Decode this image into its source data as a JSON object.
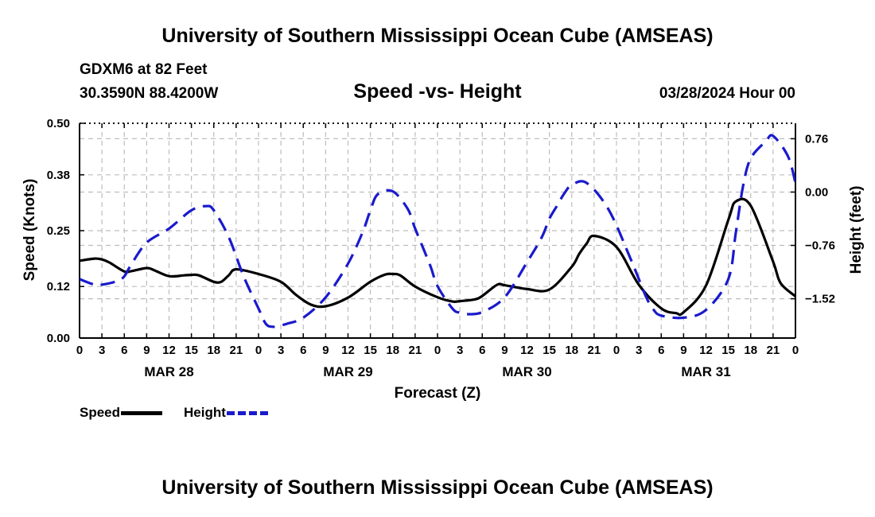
{
  "page": {
    "title_top": "University of Southern Mississippi Ocean Cube (AMSEAS)",
    "title_bottom": "University of Southern Mississippi Ocean Cube (AMSEAS)",
    "station": "GDXM6 at 82 Feet",
    "coords": "30.3590N  88.4200W",
    "subtitle": "Speed -vs- Height",
    "date": "03/28/2024 Hour 00"
  },
  "legend": {
    "speed_label": "Speed",
    "height_label": "Height"
  },
  "colors": {
    "speed": "#000000",
    "height": "#1a1acc",
    "grid": "#bdbdbd"
  },
  "chart_data": {
    "type": "line",
    "title": "Speed -vs- Height",
    "xlabel": "Forecast (Z)",
    "ylabel": "Speed (Knots)",
    "y2label": "Height (feet)",
    "x_range": [
      0,
      96
    ],
    "ylim": [
      0,
      0.5
    ],
    "y_ticks": [
      0.0,
      0.12,
      0.25,
      0.38,
      0.5
    ],
    "y_tick_labels": [
      "0.00",
      "0.12",
      "0.25",
      "0.38",
      "0.50"
    ],
    "y2lim": [
      -2.08,
      0.98
    ],
    "y2_ticks": [
      -1.52,
      -0.76,
      0.0,
      0.76
    ],
    "y2_tick_labels": [
      "−1.52",
      "−0.76",
      "0.00",
      "0.76"
    ],
    "x_ticks": [
      0,
      3,
      6,
      9,
      12,
      15,
      18,
      21,
      24,
      27,
      30,
      33,
      36,
      39,
      42,
      45,
      48,
      51,
      54,
      57,
      60,
      63,
      66,
      69,
      72,
      75,
      78,
      81,
      84,
      87,
      90,
      93,
      96
    ],
    "x_tick_labels": [
      "0",
      "3",
      "6",
      "9",
      "12",
      "15",
      "18",
      "21",
      "0",
      "3",
      "6",
      "9",
      "12",
      "15",
      "18",
      "21",
      "0",
      "3",
      "6",
      "9",
      "12",
      "15",
      "18",
      "21",
      "0",
      "3",
      "6",
      "9",
      "12",
      "15",
      "18",
      "21",
      "0"
    ],
    "day_labels": [
      {
        "label": "MAR 28",
        "hour": 12
      },
      {
        "label": "MAR 29",
        "hour": 36
      },
      {
        "label": "MAR 30",
        "hour": 60
      },
      {
        "label": "MAR 31",
        "hour": 84
      }
    ],
    "series": [
      {
        "name": "Speed",
        "axis": "left",
        "style": "solid",
        "x": [
          0,
          2,
          3,
          4,
          6,
          7,
          9,
          10,
          12,
          14,
          15,
          16,
          18,
          19,
          20,
          21,
          24,
          27,
          29,
          31,
          33,
          36,
          39,
          41,
          42,
          43,
          45,
          48,
          50,
          51,
          53,
          54,
          56,
          57,
          60,
          63,
          66,
          67,
          68,
          69,
          72,
          75,
          78,
          80,
          81,
          84,
          87,
          88,
          90,
          93,
          94,
          96
        ],
        "y": [
          0.18,
          0.185,
          0.183,
          0.176,
          0.155,
          0.156,
          0.163,
          0.158,
          0.144,
          0.146,
          0.147,
          0.146,
          0.131,
          0.131,
          0.146,
          0.16,
          0.149,
          0.131,
          0.101,
          0.078,
          0.074,
          0.094,
          0.131,
          0.148,
          0.149,
          0.146,
          0.12,
          0.095,
          0.085,
          0.086,
          0.09,
          0.098,
          0.124,
          0.123,
          0.114,
          0.113,
          0.166,
          0.196,
          0.22,
          0.238,
          0.212,
          0.124,
          0.069,
          0.058,
          0.06,
          0.122,
          0.275,
          0.318,
          0.308,
          0.178,
          0.128,
          0.097
        ]
      },
      {
        "name": "Height",
        "axis": "right",
        "style": "dashed",
        "x": [
          0,
          2,
          3,
          5,
          6,
          7,
          9,
          12,
          15,
          17,
          18,
          20,
          22,
          24,
          25,
          26,
          27,
          28,
          30,
          33,
          36,
          38,
          39,
          40,
          42,
          44,
          45,
          47,
          48,
          50,
          51,
          52,
          54,
          57,
          60,
          62,
          63,
          64,
          65,
          66,
          68,
          71,
          74,
          76,
          77,
          78,
          81,
          84,
          87,
          88,
          89,
          90,
          92,
          93,
          95,
          96
        ],
        "y": [
          -1.24,
          -1.32,
          -1.32,
          -1.27,
          -1.2,
          -1.02,
          -0.72,
          -0.52,
          -0.26,
          -0.2,
          -0.26,
          -0.64,
          -1.2,
          -1.66,
          -1.88,
          -1.92,
          -1.9,
          -1.87,
          -1.79,
          -1.5,
          -1.02,
          -0.56,
          -0.26,
          -0.03,
          0.01,
          -0.24,
          -0.52,
          -1.04,
          -1.34,
          -1.66,
          -1.72,
          -1.74,
          -1.71,
          -1.5,
          -1.0,
          -0.64,
          -0.38,
          -0.2,
          -0.02,
          0.1,
          0.13,
          -0.26,
          -0.98,
          -1.5,
          -1.68,
          -1.76,
          -1.79,
          -1.68,
          -1.24,
          -0.58,
          0.1,
          0.48,
          0.72,
          0.8,
          0.51,
          0.13
        ]
      }
    ]
  }
}
